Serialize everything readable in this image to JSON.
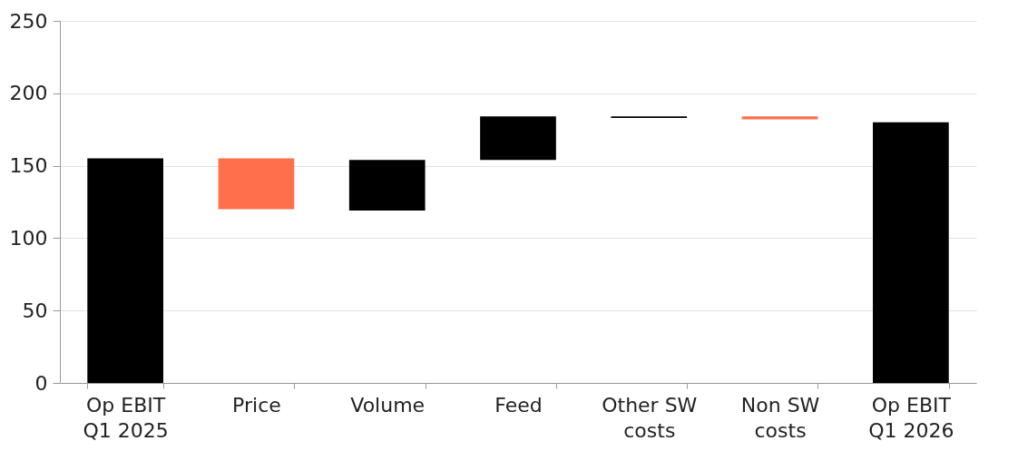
{
  "chart_data": {
    "type": "bar",
    "categories": [
      "Op EBIT Q1 2025",
      "Price",
      "Volume",
      "Feed",
      "Other SW costs",
      "Non SW costs",
      "Op EBIT Q1 2026"
    ],
    "values": [
      155,
      -35,
      35,
      30,
      1,
      -2,
      180
    ],
    "base": [
      0,
      155,
      119,
      154,
      183,
      184,
      0
    ],
    "colors": [
      "#000000",
      "#ff6f4b",
      "#000000",
      "#000000",
      "#000000",
      "#ff6f4b",
      "#000000"
    ],
    "ylim": [
      0,
      250
    ],
    "yticks": [
      0,
      50,
      100,
      150,
      200,
      250
    ],
    "grid": "y"
  }
}
